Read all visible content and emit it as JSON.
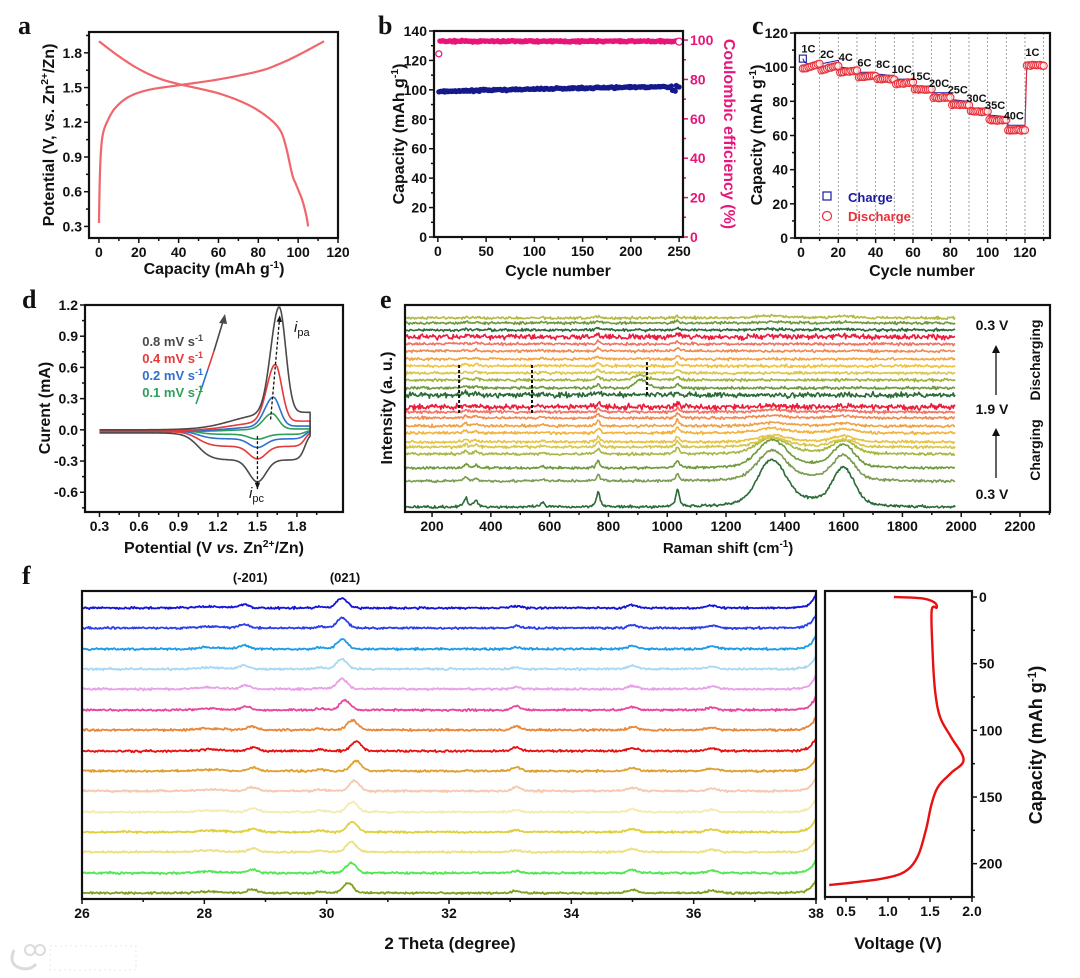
{
  "panel_letters": [
    "a",
    "b",
    "c",
    "d",
    "e",
    "f"
  ],
  "watermark": "大数跨境",
  "chart_data": [
    {
      "panel": "a",
      "type": "line",
      "xlabel": [
        {
          "t": "Capacity (mAh g"
        },
        {
          "t": "-1",
          "sup": 1
        },
        {
          "t": ")"
        }
      ],
      "ylabel": [
        {
          "t": "Potential (V, vs. Zn"
        },
        {
          "t": "2+",
          "sup": 1
        },
        {
          "t": "/Zn)"
        }
      ],
      "xlim": [
        -5,
        120
      ],
      "ylim": [
        0.2,
        1.98
      ],
      "xticks": [
        "0",
        "20",
        "40",
        "60",
        "80",
        "100",
        "120"
      ],
      "yticks": [
        "0.3",
        "0.6",
        "0.9",
        "1.2",
        "1.5",
        "1.8"
      ],
      "series": [
        {
          "name": "charge",
          "color": "#f0666c",
          "points": [
            [
              0,
              0.33
            ],
            [
              0.4,
              0.7
            ],
            [
              1,
              0.95
            ],
            [
              2,
              1.1
            ],
            [
              4,
              1.2
            ],
            [
              8,
              1.32
            ],
            [
              15,
              1.42
            ],
            [
              25,
              1.48
            ],
            [
              40,
              1.52
            ],
            [
              60,
              1.57
            ],
            [
              80,
              1.64
            ],
            [
              90,
              1.7
            ],
            [
              100,
              1.78
            ],
            [
              113,
              1.9
            ]
          ]
        },
        {
          "name": "discharge",
          "color": "#f0666c",
          "points": [
            [
              0,
              1.9
            ],
            [
              10,
              1.77
            ],
            [
              20,
              1.66
            ],
            [
              30,
              1.58
            ],
            [
              40,
              1.53
            ],
            [
              60,
              1.45
            ],
            [
              75,
              1.35
            ],
            [
              85,
              1.24
            ],
            [
              91,
              1.13
            ],
            [
              94,
              0.98
            ],
            [
              97,
              0.75
            ],
            [
              99,
              0.66
            ],
            [
              102,
              0.53
            ],
            [
              104,
              0.4
            ],
            [
              105,
              0.3
            ]
          ]
        }
      ]
    },
    {
      "panel": "b",
      "type": "scatter",
      "xlabel": [
        {
          "t": "Cycle number"
        }
      ],
      "ylabel": [
        {
          "t": "Capacity (mAh g"
        },
        {
          "t": "-1",
          "sup": 1
        },
        {
          "t": ")"
        }
      ],
      "y2label": [
        {
          "t": "Coulombic efficiency (%)"
        }
      ],
      "xlim": [
        -4,
        254
      ],
      "ylim": [
        0,
        140
      ],
      "y2lim": [
        0,
        104.6
      ],
      "xticks": [
        "0",
        "50",
        "100",
        "150",
        "200",
        "250"
      ],
      "yticks": [
        "0",
        "20",
        "40",
        "60",
        "80",
        "100",
        "120",
        "140"
      ],
      "y2ticks": [
        "0",
        "20",
        "40",
        "60",
        "80",
        "100"
      ],
      "cycles": 250,
      "capacity_every_25_cycles": [
        98.8,
        99.3,
        99.8,
        100.2,
        100.5,
        100.9,
        101.2,
        101.5,
        101.8,
        102.0,
        102.2
      ],
      "coulombic_efficiency": {
        "first_cycle": 93,
        "value": 99.4
      },
      "colors": {
        "capacity": "#141a8c",
        "ce": "#e8157a"
      }
    },
    {
      "panel": "c",
      "type": "scatter",
      "xlabel": [
        {
          "t": "Cycle number"
        }
      ],
      "ylabel": [
        {
          "t": "Capacity (mAh g"
        },
        {
          "t": "-1",
          "sup": 1
        },
        {
          "t": ")"
        }
      ],
      "xlim": [
        -3.2,
        133.4
      ],
      "ylim": [
        0,
        120
      ],
      "xticks": [
        "0",
        "20",
        "40",
        "60",
        "80",
        "100",
        "120"
      ],
      "yticks": [
        "0",
        "20",
        "40",
        "60",
        "80",
        "100",
        "120"
      ],
      "legend": [
        {
          "label": "Charge",
          "color": "#1a1aa0",
          "marker": "square"
        },
        {
          "label": "Discharge",
          "color": "#e8303a",
          "marker": "circle"
        }
      ],
      "segments": [
        {
          "rate": "1C",
          "charge": [
            105,
            102
          ],
          "discharge": [
            99,
            102
          ]
        },
        {
          "rate": "2C",
          "charge": [
            102,
            104
          ],
          "discharge": [
            98,
            101
          ]
        },
        {
          "rate": "4C",
          "charge": [
            100,
            99
          ],
          "discharge": [
            97,
            98
          ]
        },
        {
          "rate": "6C",
          "charge": [
            97,
            97
          ],
          "discharge": [
            94,
            95
          ]
        },
        {
          "rate": "8C",
          "charge": [
            96,
            95
          ],
          "discharge": [
            93,
            93
          ]
        },
        {
          "rate": "10C",
          "charge": [
            93,
            93
          ],
          "discharge": [
            90,
            91
          ]
        },
        {
          "rate": "15C",
          "charge": [
            89,
            89
          ],
          "discharge": [
            87,
            87
          ]
        },
        {
          "rate": "20C",
          "charge": [
            85,
            85
          ],
          "discharge": [
            82,
            82
          ]
        },
        {
          "rate": "25C",
          "charge": [
            81,
            80
          ],
          "discharge": [
            78,
            78
          ]
        },
        {
          "rate": "30C",
          "charge": [
            76,
            76
          ],
          "discharge": [
            74,
            74
          ]
        },
        {
          "rate": "35C",
          "charge": [
            72,
            71
          ],
          "discharge": [
            69,
            69
          ]
        },
        {
          "rate": "40C",
          "charge": [
            66,
            66
          ],
          "discharge": [
            63,
            63
          ]
        },
        {
          "rate": "1C",
          "charge": [
            103,
            103
          ],
          "discharge": [
            101,
            101
          ]
        }
      ]
    },
    {
      "panel": "d",
      "type": "line",
      "xlabel": [
        {
          "t": "Potential (V "
        },
        {
          "t": "vs.",
          "it": 1
        },
        {
          "t": " Zn"
        },
        {
          "t": "2+",
          "sup": 1
        },
        {
          "t": "/Zn)"
        }
      ],
      "ylabel": [
        {
          "t": "Curent (mA)"
        }
      ],
      "xlim": [
        0.19,
        2.15
      ],
      "ylim": [
        -0.79,
        1.2
      ],
      "xticks": [
        "0.3",
        "0.6",
        "0.9",
        "1.2",
        "1.5",
        "1.8"
      ],
      "yticks": [
        "-0.6",
        "-0.3",
        "0.0",
        "0.3",
        "0.6",
        "0.9",
        "1.2"
      ],
      "series": [
        {
          "name": "0.1 mV s",
          "sup": "-1",
          "color": "#2e9e5a",
          "k": 0.15,
          "ipa": 0.15,
          "Epa": 1.61,
          "ipc": -0.09,
          "Epc": 1.5
        },
        {
          "name": "0.2 mV s",
          "sup": "-1",
          "color": "#2f6fd0",
          "k": 0.3,
          "ipa": 0.28,
          "Epa": 1.62,
          "ipc": -0.17,
          "Epc": 1.5
        },
        {
          "name": "0.4 mV s",
          "sup": "-1",
          "color": "#e43a3a",
          "k": 0.55,
          "ipa": 0.55,
          "Epa": 1.635,
          "ipc": -0.28,
          "Epc": 1.5
        },
        {
          "name": "0.8 mV s",
          "sup": "-1",
          "color": "#4a4a4a",
          "k": 1.0,
          "ipa": 1.02,
          "Epa": 1.665,
          "ipc": -0.5,
          "Epc": 1.5
        }
      ],
      "annotations": {
        "ipa": {
          "i": "i",
          "sub": "pa"
        },
        "ipc": {
          "i": "i",
          "sub": "pc"
        }
      }
    },
    {
      "panel": "e",
      "type": "line",
      "xlabel": [
        {
          "t": "Raman shift (cm"
        },
        {
          "t": "-1",
          "sup": 1
        },
        {
          "t": ")"
        }
      ],
      "ylabel": [
        {
          "t": "Intensity (a. u.)"
        }
      ],
      "xlim": [
        108,
        2302
      ],
      "ylim": [
        0,
        207
      ],
      "xticks": [
        "200",
        "400",
        "600",
        "800",
        "1000",
        "1200",
        "1400",
        "1600",
        "1800",
        "2000",
        "2200"
      ],
      "sharp_peaks": [
        315,
        350,
        575,
        765,
        1035
      ],
      "dashed_markers": [
        292,
        540,
        931
      ],
      "labels": {
        "top": "0.3 V",
        "mid": "1.9 V",
        "bottom": "0.3 V",
        "discharging": "Discharging",
        "charging": "Charging"
      },
      "traces": [
        {
          "color": "#2a6b38",
          "offset": 5,
          "sharp": 18,
          "band": 40
        },
        {
          "color": "#7b9c52",
          "offset": 31,
          "sharp": 7,
          "band": 26
        },
        {
          "color": "#6e9a3c",
          "offset": 44,
          "sharp": 8,
          "band": 24
        },
        {
          "color": "#a7b842",
          "offset": 58,
          "sharp": 7,
          "band": 14
        },
        {
          "color": "#d6c64c",
          "offset": 65,
          "sharp": 6,
          "band": 8
        },
        {
          "color": "#e9c23f",
          "offset": 70,
          "sharp": 6,
          "band": 6
        },
        {
          "color": "#f0b43e",
          "offset": 79,
          "sharp": 6,
          "band": 4
        },
        {
          "color": "#f0a044",
          "offset": 86,
          "sharp": 6,
          "band": 3
        },
        {
          "color": "#f08a52",
          "offset": 94,
          "sharp": 5,
          "band": 2
        },
        {
          "color": "#f07462",
          "offset": 100,
          "sharp": 4,
          "band": 2
        },
        {
          "color": "#ea1e3c",
          "offset": 105,
          "sharp": 4,
          "band": 1,
          "noise": 2
        },
        {
          "color": "#2a6b38",
          "offset": 117,
          "sharp": 4,
          "band": 0,
          "noise": 2
        },
        {
          "color": "#6e9a3c",
          "offset": 124,
          "sharp": 4,
          "band": 0,
          "bump": 8
        },
        {
          "color": "#a3b23e",
          "offset": 132,
          "sharp": 4,
          "band": 0,
          "bump": 5
        },
        {
          "color": "#dcc54a",
          "offset": 139,
          "sharp": 4,
          "band": 0
        },
        {
          "color": "#f0c23e",
          "offset": 146,
          "sharp": 4,
          "band": 0
        },
        {
          "color": "#f0a846",
          "offset": 153,
          "sharp": 3,
          "band": 0
        },
        {
          "color": "#f08a52",
          "offset": 161,
          "sharp": 3,
          "band": 0
        },
        {
          "color": "#f07462",
          "offset": 168,
          "sharp": 3,
          "band": 0
        },
        {
          "color": "#ea1e3c",
          "offset": 175,
          "sharp": 3,
          "band": 1,
          "noise": 2
        },
        {
          "color": "#2a6b38",
          "offset": 182,
          "sharp": 2,
          "band": 1
        },
        {
          "color": "#6e9a3c",
          "offset": 189,
          "sharp": 2,
          "band": 1
        },
        {
          "color": "#b2ba44",
          "offset": 194,
          "sharp": 2,
          "band": 2
        }
      ]
    },
    {
      "panel": "f",
      "type": "line",
      "xlabel": [
        {
          "t": "2 Theta (degree)"
        }
      ],
      "xlim": [
        26,
        38
      ],
      "ylim": [
        0,
        308
      ],
      "xticks": [
        "26",
        "28",
        "30",
        "32",
        "34",
        "36",
        "38"
      ],
      "peak_labels": [
        {
          "t": "(-201)",
          "x": 28.75
        },
        {
          "t": "(021)",
          "x": 30.3
        }
      ],
      "traces": [
        {
          "color": "#1414d8",
          "offset": 291,
          "p021": 30.25,
          "p201": 28.65
        },
        {
          "color": "#2b3fe8",
          "offset": 271,
          "p021": 30.25,
          "p201": 28.65
        },
        {
          "color": "#1e9be8",
          "offset": 250,
          "p021": 30.25,
          "p201": 28.65
        },
        {
          "color": "#a8d8f5",
          "offset": 230,
          "p021": 30.25,
          "p201": 28.65
        },
        {
          "color": "#e8a0e8",
          "offset": 210,
          "p021": 30.25,
          "p201": 28.68
        },
        {
          "color": "#e8479b",
          "offset": 189,
          "p021": 30.3,
          "p201": 28.68
        },
        {
          "color": "#e8883a",
          "offset": 169,
          "p021": 30.42,
          "p201": 28.78
        },
        {
          "color": "#e81010",
          "offset": 148,
          "p021": 30.48,
          "p201": 28.8
        },
        {
          "color": "#e0a030",
          "offset": 128,
          "p021": 30.48,
          "p201": 28.8
        },
        {
          "color": "#f5c8b0",
          "offset": 108,
          "p021": 30.45,
          "p201": 28.8
        },
        {
          "color": "#f5eab0",
          "offset": 87,
          "p021": 30.42,
          "p201": 28.8
        },
        {
          "color": "#e0d040",
          "offset": 67,
          "p021": 30.42,
          "p201": 28.8
        },
        {
          "color": "#ece080",
          "offset": 47,
          "p021": 30.4,
          "p201": 28.8
        },
        {
          "color": "#50e850",
          "offset": 26,
          "p021": 30.4,
          "p201": 28.78
        },
        {
          "color": "#80a020",
          "offset": 6,
          "p021": 30.35,
          "p201": 28.78
        }
      ]
    },
    {
      "panel": "f-voltage",
      "type": "line",
      "xlabel": [
        {
          "t": "Voltage (V)"
        }
      ],
      "ylabel": [
        {
          "t": "Capacity (mAh g"
        },
        {
          "t": "-1",
          "sup": 1
        },
        {
          "t": ")"
        }
      ],
      "xlim": [
        0.25,
        2.0
      ],
      "ylim": [
        225,
        -4.5
      ],
      "xticks": [
        "0.5",
        "1.0",
        "1.5",
        "2.0"
      ],
      "yticks": [
        "0",
        "50",
        "100",
        "150",
        "200"
      ],
      "series": [
        {
          "name": "voltage profile",
          "color": "#e81010",
          "points": [
            [
              1.07,
              0
            ],
            [
              1.4,
              1
            ],
            [
              1.55,
              4
            ],
            [
              1.58,
              8
            ],
            [
              1.52,
              10
            ],
            [
              1.53,
              40
            ],
            [
              1.56,
              70
            ],
            [
              1.62,
              90
            ],
            [
              1.75,
              105
            ],
            [
              1.9,
              122
            ],
            [
              1.75,
              132
            ],
            [
              1.6,
              142
            ],
            [
              1.52,
              155
            ],
            [
              1.45,
              175
            ],
            [
              1.35,
              195
            ],
            [
              1.2,
              206
            ],
            [
              0.95,
              211
            ],
            [
              0.6,
              214
            ],
            [
              0.3,
              216
            ]
          ]
        }
      ]
    }
  ]
}
